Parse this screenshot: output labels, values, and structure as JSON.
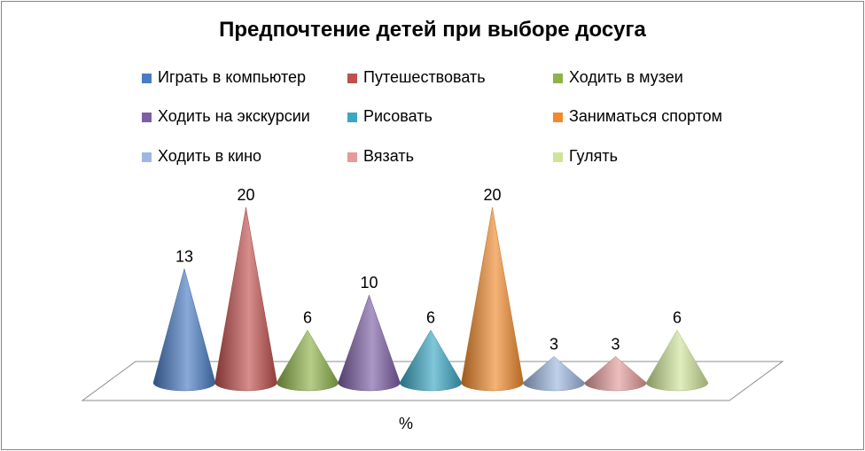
{
  "chart_data": {
    "type": "bar",
    "title": "Предпочтение детей при выборе досуга",
    "xlabel": "%",
    "ylabel": "",
    "ylim": [
      0,
      20
    ],
    "categories": [
      "Играть в компьютер",
      "Путешествовать",
      "Ходить в музеи",
      "Ходить на экскурсии",
      "Рисовать",
      "Заниматься спортом",
      "Ходить в кино",
      "Вязать",
      "Гулять"
    ],
    "values": [
      13,
      20,
      6,
      10,
      6,
      20,
      3,
      3,
      6
    ],
    "data_labels": [
      "13",
      "20",
      "6",
      "10",
      "6",
      "20",
      "3",
      "3",
      "6"
    ],
    "colors": [
      "#4a7cc3",
      "#c0504d",
      "#8fb24b",
      "#7d5fa5",
      "#3ca7c4",
      "#f08a2d",
      "#9db7e0",
      "#e39b9b",
      "#cfe39a"
    ],
    "legend_position": "top",
    "mark_shape": "cone",
    "grid": false
  }
}
